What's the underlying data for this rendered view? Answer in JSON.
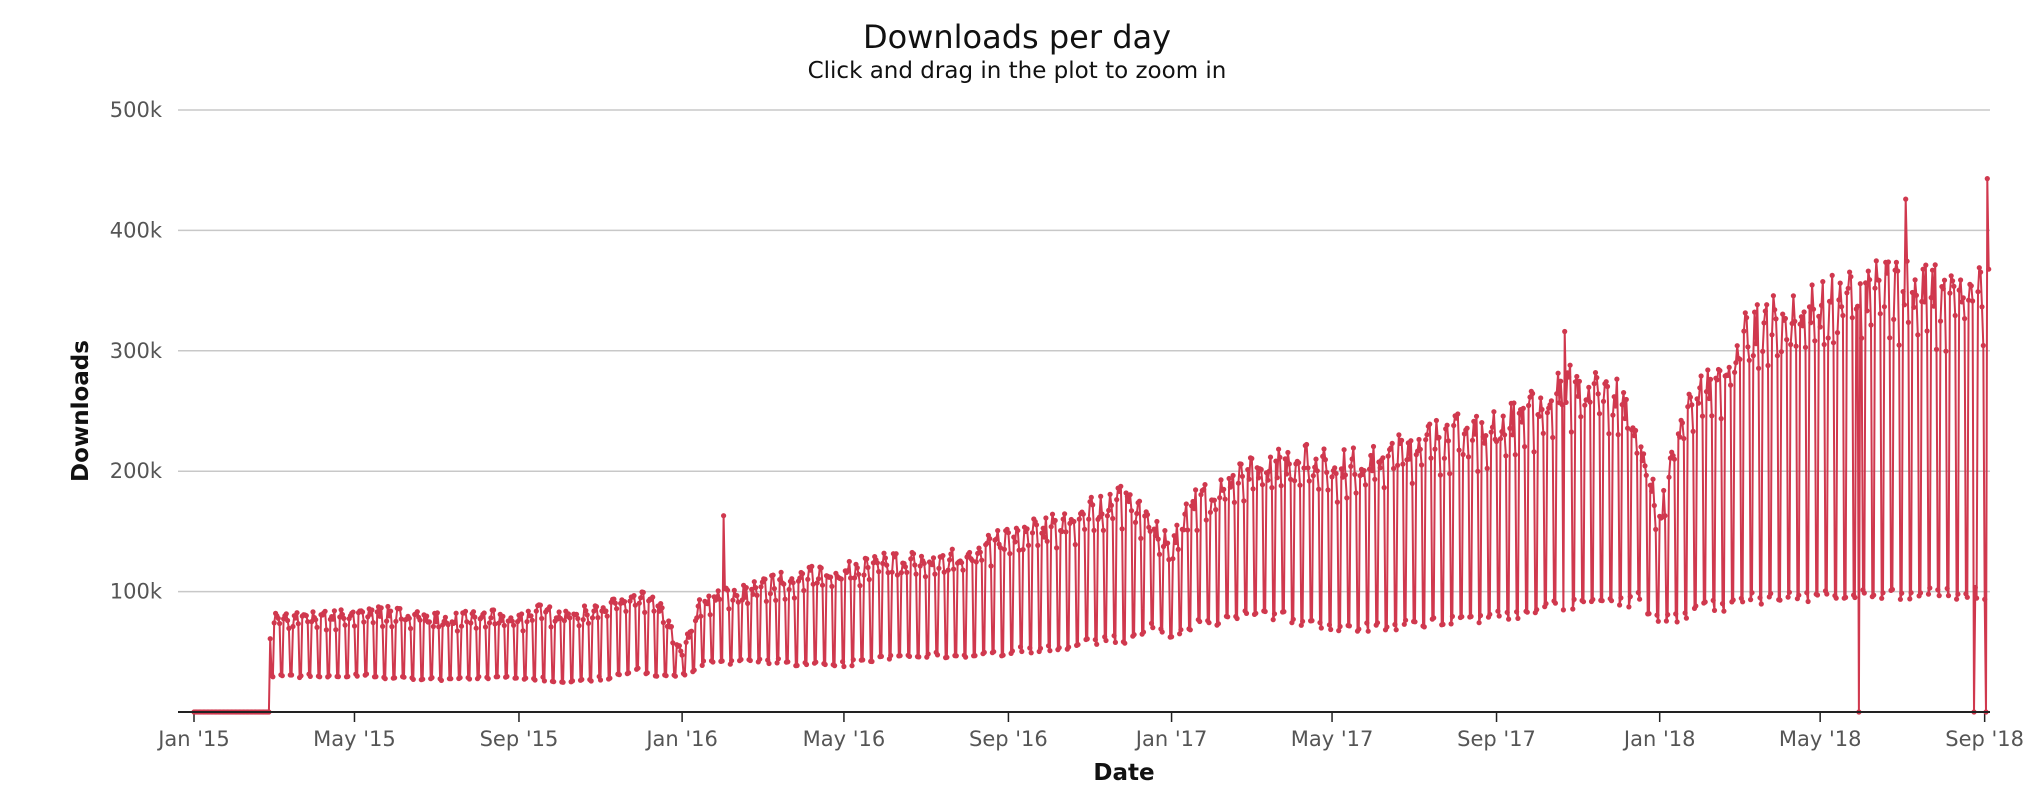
{
  "chart_data": {
    "type": "line",
    "title": "Downloads per day",
    "subtitle": "Click and drag in the plot to zoom in",
    "xlabel": "Date",
    "ylabel": "Downloads",
    "ylim": [
      0,
      500000
    ],
    "xlim": [
      "2015-01-01",
      "2018-09-05"
    ],
    "y_ticks": [
      {
        "value": 100000,
        "label": "100k"
      },
      {
        "value": 200000,
        "label": "200k"
      },
      {
        "value": 300000,
        "label": "300k"
      },
      {
        "value": 400000,
        "label": "400k"
      },
      {
        "value": 500000,
        "label": "500k"
      }
    ],
    "x_ticks": [
      {
        "date": "2015-01-01",
        "label": "Jan '15"
      },
      {
        "date": "2015-05-01",
        "label": "May '15"
      },
      {
        "date": "2015-09-01",
        "label": "Sep '15"
      },
      {
        "date": "2016-01-01",
        "label": "Jan '16"
      },
      {
        "date": "2016-05-01",
        "label": "May '16"
      },
      {
        "date": "2016-09-01",
        "label": "Sep '16"
      },
      {
        "date": "2017-01-01",
        "label": "Jan '17"
      },
      {
        "date": "2017-05-01",
        "label": "May '17"
      },
      {
        "date": "2017-09-01",
        "label": "Sep '17"
      },
      {
        "date": "2018-01-01",
        "label": "Jan '18"
      },
      {
        "date": "2018-05-01",
        "label": "May '18"
      },
      {
        "date": "2018-09-01",
        "label": "Sep '18"
      }
    ],
    "grid": true,
    "legend": "none",
    "series_color": "#d0384e",
    "series": [
      {
        "x": [
          "2015-01-01",
          "2015-02-27",
          "2015-03-01",
          "2015-03-15",
          "2015-04-01",
          "2015-04-15",
          "2015-05-01",
          "2015-05-15",
          "2015-06-01",
          "2015-06-15",
          "2015-07-01",
          "2015-07-15",
          "2015-08-01",
          "2015-08-15",
          "2015-09-01",
          "2015-09-15",
          "2015-10-01",
          "2015-10-15",
          "2015-11-01",
          "2015-11-15",
          "2015-12-01",
          "2015-12-15",
          "2016-01-01",
          "2016-01-15",
          "2016-02-01",
          "2016-02-15",
          "2016-03-01",
          "2016-03-15",
          "2016-04-01",
          "2016-04-15",
          "2016-05-01",
          "2016-05-15",
          "2016-06-01",
          "2016-06-15",
          "2016-07-01",
          "2016-07-15",
          "2016-08-01",
          "2016-08-15",
          "2016-09-01",
          "2016-09-15",
          "2016-10-01",
          "2016-10-15",
          "2016-11-01",
          "2016-11-15",
          "2016-12-01",
          "2016-12-15",
          "2017-01-01",
          "2017-01-15",
          "2017-02-01",
          "2017-02-15",
          "2017-03-01",
          "2017-03-15",
          "2017-04-01",
          "2017-04-15",
          "2017-05-01",
          "2017-05-15",
          "2017-06-01",
          "2017-06-15",
          "2017-07-01",
          "2017-07-15",
          "2017-08-01",
          "2017-08-15",
          "2017-09-01",
          "2017-09-15",
          "2017-10-01",
          "2017-10-15",
          "2017-11-01",
          "2017-11-15",
          "2017-12-01",
          "2017-12-15",
          "2018-01-01",
          "2018-01-15",
          "2018-02-01",
          "2018-02-15",
          "2018-03-01",
          "2018-03-15",
          "2018-04-01",
          "2018-04-15",
          "2018-05-01",
          "2018-05-15",
          "2018-06-01",
          "2018-06-15",
          "2018-07-01",
          "2018-07-15",
          "2018-08-01",
          "2018-08-15",
          "2018-09-01",
          "2018-09-04"
        ],
        "weekday": [
          0,
          72000,
          80000,
          78000,
          80000,
          80000,
          82000,
          84000,
          82000,
          82000,
          78000,
          78000,
          80000,
          80000,
          78000,
          85000,
          82000,
          82000,
          88000,
          92000,
          95000,
          88000,
          50000,
          92000,
          100000,
          100000,
          105000,
          110000,
          112000,
          118000,
          118000,
          122000,
          125000,
          128000,
          125000,
          128000,
          132000,
          140000,
          145000,
          150000,
          155000,
          160000,
          168000,
          175000,
          180000,
          160000,
          135000,
          175000,
          185000,
          195000,
          200000,
          205000,
          210000,
          215000,
          205000,
          208000,
          210000,
          215000,
          225000,
          230000,
          235000,
          235000,
          240000,
          245000,
          255000,
          270000,
          275000,
          270000,
          265000,
          240000,
          160000,
          240000,
          265000,
          285000,
          310000,
          320000,
          330000,
          335000,
          340000,
          345000,
          350000,
          355000,
          360000,
          355000,
          350000,
          350000,
          350000,
          350000
        ],
        "weekend": [
          0,
          30000,
          30000,
          30000,
          30000,
          30000,
          30000,
          30000,
          28000,
          28000,
          27000,
          27000,
          28000,
          28000,
          28000,
          28000,
          26000,
          25000,
          28000,
          30000,
          35000,
          30000,
          30000,
          40000,
          42000,
          42000,
          42000,
          42000,
          40000,
          40000,
          40000,
          42000,
          45000,
          45000,
          47000,
          47000,
          48000,
          48000,
          50000,
          52000,
          52000,
          55000,
          58000,
          62000,
          60000,
          70000,
          65000,
          72000,
          75000,
          78000,
          80000,
          82000,
          78000,
          75000,
          70000,
          70000,
          70000,
          72000,
          75000,
          75000,
          78000,
          78000,
          80000,
          82000,
          85000,
          88000,
          90000,
          90000,
          90000,
          95000,
          75000,
          80000,
          88000,
          88000,
          90000,
          95000,
          95000,
          95000,
          98000,
          98000,
          98000,
          98000,
          98000,
          98000,
          98000,
          98000,
          98000,
          110000
        ]
      }
    ],
    "notable_points": [
      {
        "x": "2016-02-01",
        "y": 163000
      },
      {
        "x": "2017-10-22",
        "y": 316000
      },
      {
        "x": "2018-07-04",
        "y": 426000
      },
      {
        "x": "2018-09-03",
        "y": 443000
      },
      {
        "x": "2018-05-30",
        "y": 0
      },
      {
        "x": "2018-08-24",
        "y": 0
      },
      {
        "x": "2018-09-02",
        "y": 0
      }
    ]
  }
}
